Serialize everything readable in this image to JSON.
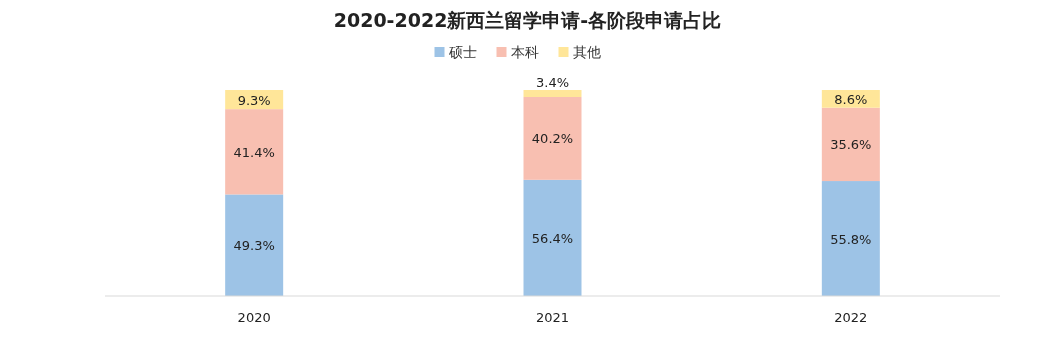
{
  "chart_data": {
    "type": "bar",
    "stacked": true,
    "title": "2020-2022新西兰留学申请-各阶段申请占比",
    "categories": [
      "2020",
      "2021",
      "2022"
    ],
    "legend": "top",
    "series": [
      {
        "name": "硕士",
        "color": "#9dc3e6",
        "values": [
          49.3,
          56.4,
          55.8
        ],
        "value_labels": [
          "49.3%",
          "56.4%",
          "55.8%"
        ]
      },
      {
        "name": "本科",
        "color": "#f8bfb1",
        "values": [
          41.4,
          40.2,
          35.6
        ],
        "value_labels": [
          "41.4%",
          "40.2%",
          "35.6%"
        ]
      },
      {
        "name": "其他",
        "color": "#ffe699",
        "values": [
          9.3,
          3.4,
          8.6
        ],
        "value_labels": [
          "9.3%",
          "3.4%",
          "8.6%"
        ]
      }
    ]
  }
}
